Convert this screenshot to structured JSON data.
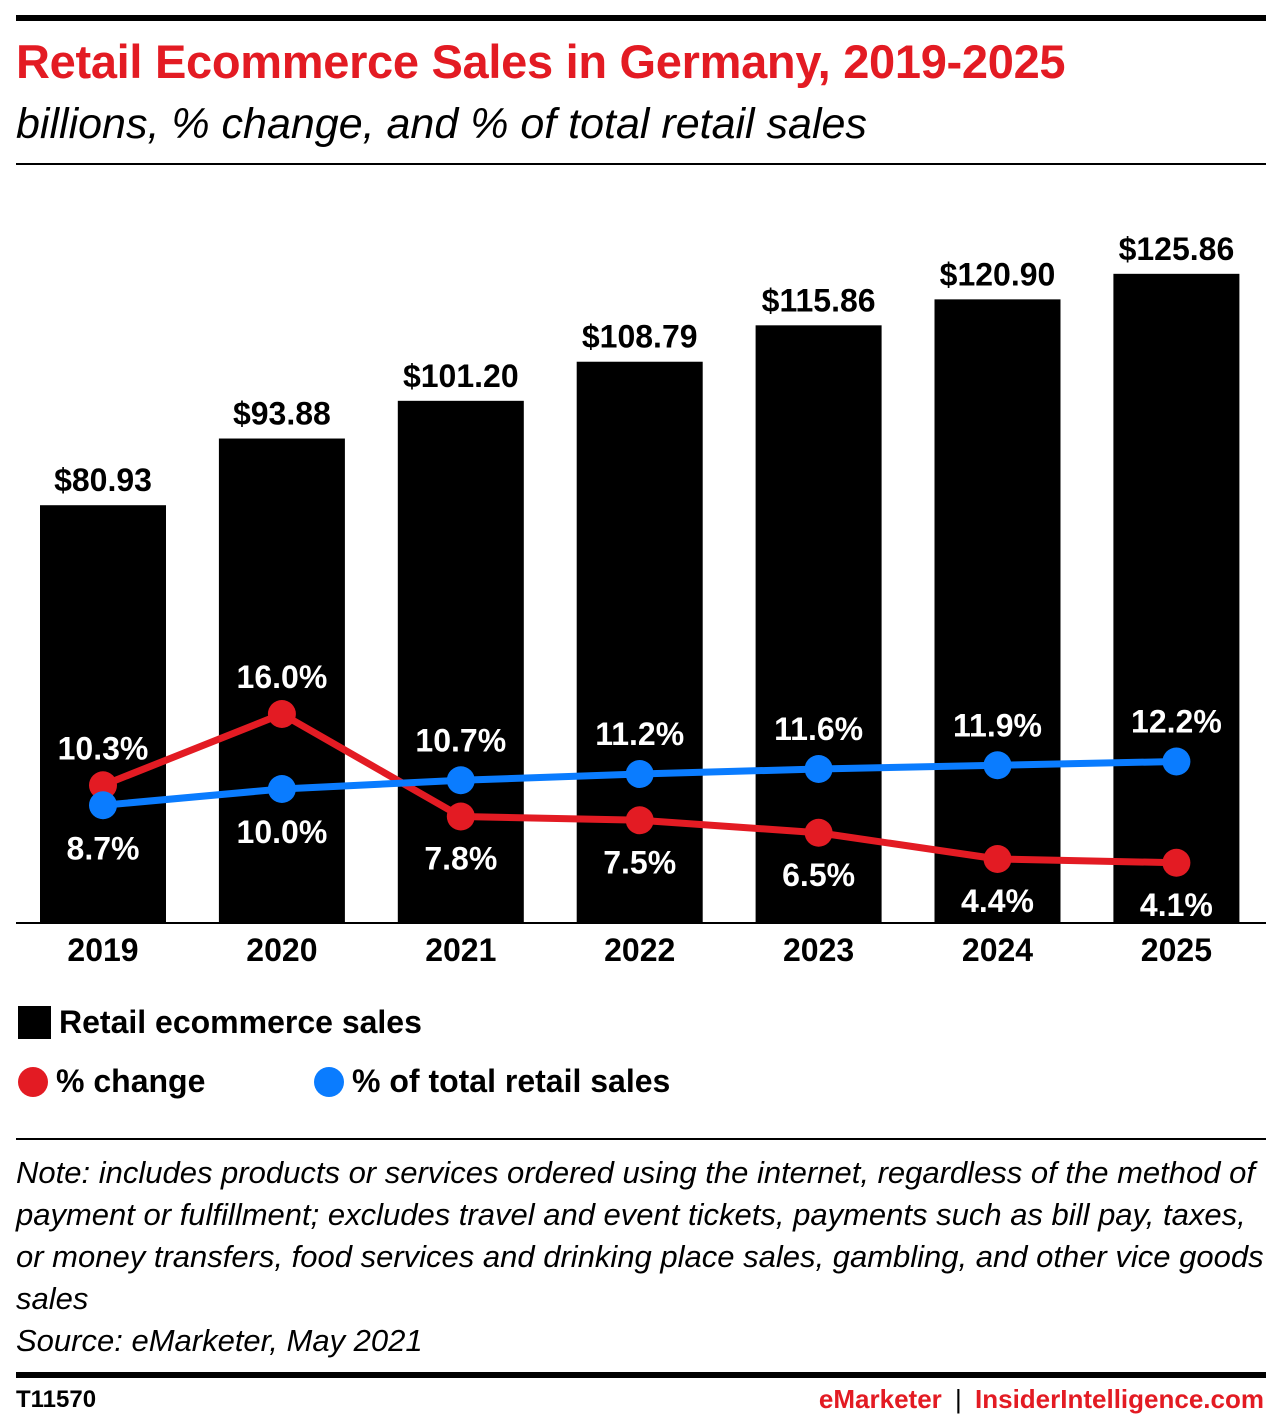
{
  "header": {
    "title": "Retail Ecommerce Sales in Germany, 2019-2025",
    "subtitle": "billions, % change, and % of total retail sales"
  },
  "colors": {
    "bar": "#000000",
    "change": "#e31b23",
    "share": "#0a7cff",
    "title": "#e31b23"
  },
  "chart_data": {
    "type": "bar",
    "title": "Retail Ecommerce Sales in Germany, 2019-2025",
    "subtitle": "billions, % change, and % of total retail sales",
    "categories": [
      "2019",
      "2020",
      "2021",
      "2022",
      "2023",
      "2024",
      "2025"
    ],
    "series": [
      {
        "name": "Retail ecommerce sales",
        "type": "bar",
        "values": [
          80.93,
          93.88,
          101.2,
          108.79,
          115.86,
          120.9,
          125.86
        ],
        "labels": [
          "$80.93",
          "$93.88",
          "$101.20",
          "$108.79",
          "$115.86",
          "$120.90",
          "$125.86"
        ]
      },
      {
        "name": "% change",
        "type": "line",
        "values": [
          10.3,
          16.0,
          7.8,
          7.5,
          6.5,
          4.4,
          4.1
        ],
        "labels": [
          "10.3%",
          "16.0%",
          "7.8%",
          "7.5%",
          "6.5%",
          "4.4%",
          "4.1%"
        ]
      },
      {
        "name": "% of total retail sales",
        "type": "line",
        "values": [
          8.7,
          10.0,
          10.7,
          11.2,
          11.6,
          11.9,
          12.2
        ],
        "labels": [
          "8.7%",
          "10.0%",
          "10.7%",
          "11.2%",
          "11.6%",
          "11.9%",
          "12.2%"
        ]
      }
    ],
    "ylim": [
      0,
      130
    ],
    "ylim_pct": [
      0,
      32
    ],
    "grid": false,
    "legend_position": "bottom-left"
  },
  "legend": {
    "bar_label": "Retail ecommerce sales",
    "change_label": "% change",
    "share_label": "% of total retail sales"
  },
  "note": {
    "text": "Note: includes products or services ordered using the internet, regardless of the method of payment or fulfillment; excludes travel and event tickets, payments such as bill pay, taxes, or money transfers, food services and drinking place sales, gambling, and other vice goods sales",
    "source": "Source: eMarketer, May 2021"
  },
  "footer": {
    "id": "T11570",
    "brand_left": "eMarketer",
    "separator": "|",
    "brand_right": "InsiderIntelligence.com"
  }
}
